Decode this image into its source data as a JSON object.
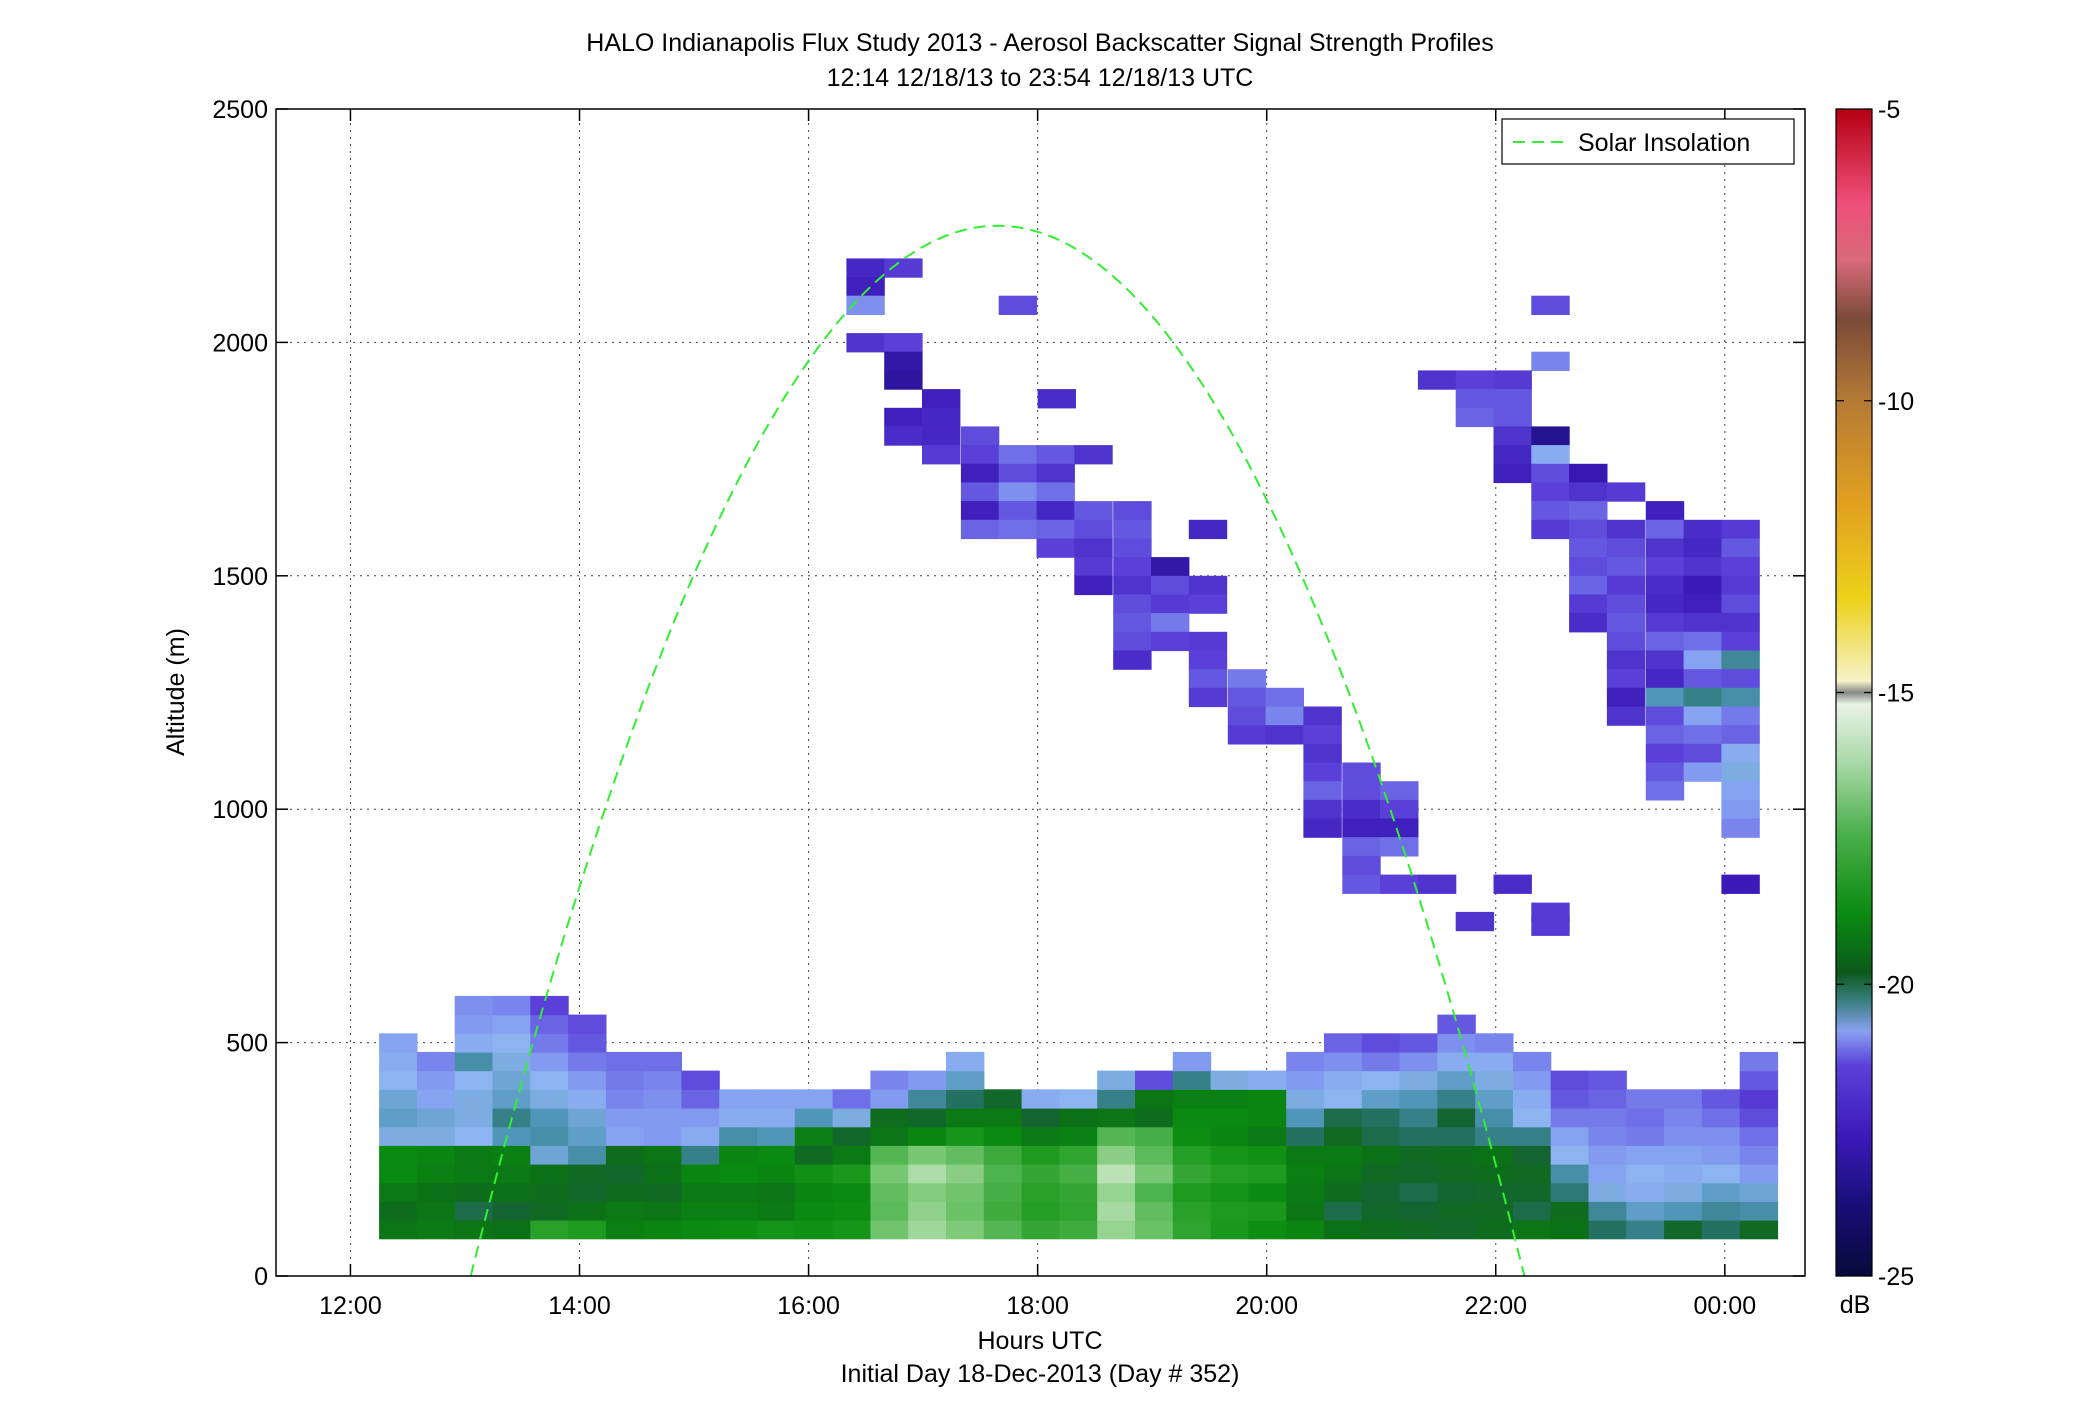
{
  "chart_data": {
    "type": "heatmap",
    "title": "HALO Indianapolis Flux Study 2013 - Aerosol Backscatter Signal Strength Profiles",
    "subtitle": "12:14 12/18/13 to 23:54 12/18/13  UTC",
    "xlabel": "Hours UTC",
    "xlabel2": "Initial Day 18-Dec-2013 (Day # 352)",
    "ylabel": "Altitude (m)",
    "xlim_hours": [
      11.35,
      24.7
    ],
    "ylim": [
      0,
      2500
    ],
    "x_ticks": [
      {
        "value": 12,
        "label": "12:00"
      },
      {
        "value": 14,
        "label": "14:00"
      },
      {
        "value": 16,
        "label": "16:00"
      },
      {
        "value": 18,
        "label": "18:00"
      },
      {
        "value": 20,
        "label": "20:00"
      },
      {
        "value": 22,
        "label": "22:00"
      },
      {
        "value": 24,
        "label": "00:00"
      }
    ],
    "y_ticks": [
      {
        "value": 0,
        "label": "0"
      },
      {
        "value": 500,
        "label": "500"
      },
      {
        "value": 1000,
        "label": "1000"
      },
      {
        "value": 1500,
        "label": "1500"
      },
      {
        "value": 2000,
        "label": "2000"
      },
      {
        "value": 2500,
        "label": "2500"
      }
    ],
    "grid": true,
    "legend": {
      "position": "top-right",
      "entries": [
        {
          "name": "Solar Insolation",
          "color": "#33ee33",
          "style": "dashed"
        }
      ]
    },
    "colorbar": {
      "unit": "dB",
      "range": [
        -25,
        -5
      ],
      "ticks": [
        {
          "value": -5,
          "label": "-5"
        },
        {
          "value": -10,
          "label": "-10"
        },
        {
          "value": -15,
          "label": "-15"
        },
        {
          "value": -20,
          "label": "-20"
        },
        {
          "value": -25,
          "label": "-25"
        }
      ]
    },
    "solar_insolation": {
      "start_hour": 13.05,
      "end_hour": 22.25,
      "peak_hour": 17.65,
      "peak_altitude": 2250
    },
    "cell_width_hours": 0.33,
    "cell_height_m": 40,
    "boundary_layer": {
      "start_hour": 12.25,
      "columns": [
        [
          -19.7,
          -19.9,
          -19.6,
          -19.3,
          -19.3,
          -21.2,
          -21.0,
          -21.1,
          -21.3,
          -21.4,
          -21.5
        ],
        [
          -19.6,
          -19.7,
          -19.8,
          -19.5,
          -19.4,
          -21.2,
          -21.1,
          -21.5,
          -21.6,
          -21.8
        ],
        [
          -19.7,
          -20.3,
          -19.9,
          -19.6,
          -19.6,
          -21.3,
          -21.2,
          -21.2,
          -21.3,
          -20.8,
          -21.4,
          -21.6,
          -21.7
        ],
        [
          -19.8,
          -20.2,
          -19.8,
          -19.6,
          -19.5,
          -20.9,
          -20.6,
          -21.0,
          -21.1,
          -21.2,
          -21.3,
          -21.5,
          -21.8
        ],
        [
          -18.5,
          -20.0,
          -19.9,
          -19.8,
          -21.1,
          -20.8,
          -20.9,
          -21.2,
          -21.3,
          -21.6,
          -21.9,
          -22.1,
          -22.4
        ],
        [
          -18.7,
          -19.8,
          -20.1,
          -20.0,
          -20.8,
          -21.0,
          -21.1,
          -21.4,
          -21.6,
          -21.9,
          -22.2,
          -22.3
        ],
        [
          -19.5,
          -19.6,
          -19.9,
          -20.1,
          -19.9,
          -21.5,
          -21.6,
          -21.8,
          -21.9,
          -22.0
        ],
        [
          -19.4,
          -19.7,
          -20.0,
          -19.8,
          -19.7,
          -21.6,
          -21.6,
          -21.7,
          -21.8,
          -22.0
        ],
        [
          -19.3,
          -19.5,
          -19.6,
          -19.4,
          -20.6,
          -21.4,
          -21.6,
          -22.1,
          -22.3
        ],
        [
          -19.2,
          -19.5,
          -19.6,
          -19.3,
          -19.4,
          -20.8,
          -21.4,
          -21.5
        ],
        [
          -19.0,
          -19.6,
          -19.7,
          -19.4,
          -19.3,
          -20.9,
          -21.4,
          -21.5
        ],
        [
          -19.1,
          -19.3,
          -19.4,
          -19.1,
          -20.0,
          -19.5,
          -20.9,
          -21.5
        ],
        [
          -18.9,
          -19.2,
          -19.3,
          -18.8,
          -19.6,
          -20.1,
          -21.2,
          -22.0
        ],
        [
          -17.4,
          -17.7,
          -17.6,
          -17.3,
          -17.8,
          -19.7,
          -19.9,
          -21.6,
          -21.8
        ],
        [
          -16.6,
          -16.9,
          -17.1,
          -16.4,
          -17.3,
          -19.4,
          -20.1,
          -20.7,
          -21.6
        ],
        [
          -17.2,
          -17.5,
          -17.4,
          -17.0,
          -17.6,
          -18.9,
          -19.6,
          -20.4,
          -21.0,
          -21.4
        ],
        [
          -17.8,
          -18.1,
          -18.0,
          -17.9,
          -18.2,
          -19.3,
          -19.6,
          -20.1
        ],
        [
          -18.3,
          -18.6,
          -18.5,
          -18.3,
          -18.7,
          -19.6,
          -20.2,
          -21.4
        ],
        [
          -18.1,
          -18.4,
          -18.3,
          -18.0,
          -18.4,
          -19.5,
          -19.8,
          -21.3
        ],
        [
          -16.8,
          -16.5,
          -16.8,
          -16.2,
          -17.0,
          -17.8,
          -19.7,
          -20.6,
          -21.2
        ],
        [
          -17.5,
          -17.6,
          -17.9,
          -17.3,
          -17.7,
          -18.0,
          -19.9,
          -19.7,
          -22.3
        ],
        [
          -18.4,
          -18.5,
          -18.7,
          -18.3,
          -18.6,
          -19.2,
          -19.3,
          -19.5,
          -20.6,
          -21.6
        ],
        [
          -18.8,
          -18.7,
          -19.0,
          -18.6,
          -18.9,
          -19.4,
          -19.3,
          -19.5,
          -21.2
        ],
        [
          -19.2,
          -18.8,
          -19.3,
          -18.7,
          -19.1,
          -19.6,
          -19.4,
          -19.4,
          -21.4
        ],
        [
          -19.4,
          -19.7,
          -19.6,
          -19.5,
          -19.6,
          -20.4,
          -20.9,
          -21.2,
          -21.6,
          -21.8
        ],
        [
          -19.8,
          -20.3,
          -19.9,
          -19.7,
          -19.6,
          -20.0,
          -20.3,
          -21.3,
          -21.4,
          -21.7,
          -22.1
        ],
        [
          -19.9,
          -20.1,
          -20.2,
          -20.0,
          -19.8,
          -20.3,
          -20.4,
          -21.0,
          -21.3,
          -21.9,
          -22.3
        ],
        [
          -20.0,
          -20.2,
          -20.3,
          -20.1,
          -20.0,
          -20.4,
          -20.6,
          -20.9,
          -21.2,
          -21.7,
          -22.2
        ],
        [
          -20.1,
          -20.0,
          -20.2,
          -20.0,
          -19.9,
          -20.4,
          -20.2,
          -20.6,
          -21.0,
          -21.4,
          -21.7,
          -22.2
        ],
        [
          -19.9,
          -20.0,
          -20.1,
          -19.9,
          -19.8,
          -20.6,
          -20.8,
          -21.0,
          -21.2,
          -21.4,
          -21.8
        ],
        [
          -19.7,
          -20.3,
          -20.1,
          -20.0,
          -20.2,
          -20.6,
          -21.3,
          -21.4,
          -21.6,
          -21.8
        ],
        [
          -19.8,
          -19.9,
          -20.5,
          -20.8,
          -21.3,
          -21.5,
          -21.9,
          -22.2,
          -22.3
        ],
        [
          -20.4,
          -20.7,
          -21.2,
          -21.5,
          -21.6,
          -21.8,
          -21.9,
          -22.1,
          -22.2
        ],
        [
          -20.6,
          -21.0,
          -21.4,
          -21.3,
          -21.5,
          -21.9,
          -22.0,
          -21.9
        ],
        [
          -20.1,
          -20.9,
          -21.2,
          -21.4,
          -21.5,
          -21.7,
          -21.8,
          -21.9
        ],
        [
          -20.4,
          -20.7,
          -21.0,
          -21.3,
          -21.6,
          -21.7,
          -22.0,
          -22.2
        ],
        [
          -20.0,
          -20.8,
          -21.1,
          -21.6,
          -21.8,
          -22.0,
          -22.3,
          -22.5,
          -22.2,
          -21.9
        ]
      ]
    },
    "aerosol_layer_cells": [
      [
        16.33,
        2140,
        -22.8
      ],
      [
        16.66,
        2140,
        -22.5
      ],
      [
        16.33,
        2100,
        -22.9
      ],
      [
        16.33,
        2060,
        -21.7
      ],
      [
        17.66,
        2060,
        -22.3
      ],
      [
        16.33,
        1980,
        -22.6
      ],
      [
        16.66,
        1980,
        -22.4
      ],
      [
        16.66,
        1940,
        -23.2
      ],
      [
        16.66,
        1900,
        -23.3
      ],
      [
        16.99,
        1860,
        -22.9
      ],
      [
        18.0,
        1860,
        -22.7
      ],
      [
        16.66,
        1820,
        -22.9
      ],
      [
        16.99,
        1820,
        -22.8
      ],
      [
        16.66,
        1780,
        -22.7
      ],
      [
        16.99,
        1780,
        -22.8
      ],
      [
        17.33,
        1780,
        -22.3
      ],
      [
        16.99,
        1740,
        -22.5
      ],
      [
        17.33,
        1740,
        -22.4
      ],
      [
        17.66,
        1740,
        -22.0
      ],
      [
        17.99,
        1740,
        -22.2
      ],
      [
        18.32,
        1740,
        -22.6
      ],
      [
        17.33,
        1700,
        -22.9
      ],
      [
        17.66,
        1700,
        -22.3
      ],
      [
        17.99,
        1700,
        -22.6
      ],
      [
        17.33,
        1660,
        -22.2
      ],
      [
        17.66,
        1660,
        -21.7
      ],
      [
        17.99,
        1660,
        -22.0
      ],
      [
        17.33,
        1620,
        -22.9
      ],
      [
        17.66,
        1620,
        -22.2
      ],
      [
        17.99,
        1620,
        -22.8
      ],
      [
        18.32,
        1620,
        -22.2
      ],
      [
        18.66,
        1620,
        -22.3
      ],
      [
        17.33,
        1580,
        -22.1
      ],
      [
        17.66,
        1580,
        -22.0
      ],
      [
        17.99,
        1580,
        -22.1
      ],
      [
        18.32,
        1580,
        -22.3
      ],
      [
        18.66,
        1580,
        -22.2
      ],
      [
        19.32,
        1580,
        -22.8
      ],
      [
        17.99,
        1540,
        -22.4
      ],
      [
        18.32,
        1540,
        -22.6
      ],
      [
        18.66,
        1540,
        -22.3
      ],
      [
        18.32,
        1500,
        -22.5
      ],
      [
        18.66,
        1500,
        -22.4
      ],
      [
        18.99,
        1500,
        -23.2
      ],
      [
        18.32,
        1460,
        -22.9
      ],
      [
        18.66,
        1460,
        -22.6
      ],
      [
        18.99,
        1460,
        -22.3
      ],
      [
        19.32,
        1460,
        -22.6
      ],
      [
        18.66,
        1420,
        -22.3
      ],
      [
        18.99,
        1420,
        -22.5
      ],
      [
        19.32,
        1420,
        -22.4
      ],
      [
        18.66,
        1380,
        -22.2
      ],
      [
        18.99,
        1380,
        -21.9
      ],
      [
        18.66,
        1340,
        -22.3
      ],
      [
        18.99,
        1340,
        -22.4
      ],
      [
        19.32,
        1340,
        -22.5
      ],
      [
        18.66,
        1300,
        -22.7
      ],
      [
        19.32,
        1300,
        -22.4
      ],
      [
        19.32,
        1260,
        -22.2
      ],
      [
        19.66,
        1260,
        -21.9
      ],
      [
        19.32,
        1220,
        -22.5
      ],
      [
        19.66,
        1220,
        -22.2
      ],
      [
        19.99,
        1220,
        -22.0
      ],
      [
        19.66,
        1180,
        -22.3
      ],
      [
        19.99,
        1180,
        -21.8
      ],
      [
        20.32,
        1180,
        -22.6
      ],
      [
        19.66,
        1140,
        -22.5
      ],
      [
        19.99,
        1140,
        -22.6
      ],
      [
        20.32,
        1140,
        -22.4
      ],
      [
        20.32,
        1100,
        -22.6
      ],
      [
        20.32,
        1060,
        -22.4
      ],
      [
        20.66,
        1060,
        -22.3
      ],
      [
        20.32,
        1020,
        -22.1
      ],
      [
        20.66,
        1020,
        -22.3
      ],
      [
        20.99,
        1020,
        -22.1
      ],
      [
        20.32,
        980,
        -22.6
      ],
      [
        20.66,
        980,
        -22.7
      ],
      [
        20.99,
        980,
        -22.4
      ],
      [
        20.32,
        940,
        -22.8
      ],
      [
        20.66,
        940,
        -22.9
      ],
      [
        20.99,
        940,
        -22.9
      ],
      [
        20.66,
        900,
        -22.1
      ],
      [
        20.99,
        900,
        -22.0
      ],
      [
        20.66,
        860,
        -22.3
      ],
      [
        20.66,
        820,
        -22.2
      ],
      [
        20.99,
        820,
        -22.4
      ],
      [
        21.32,
        820,
        -22.6
      ],
      [
        21.98,
        820,
        -22.7
      ],
      [
        23.97,
        820,
        -23.0
      ],
      [
        21.65,
        740,
        -22.6
      ],
      [
        22.31,
        760,
        -22.5
      ],
      [
        22.31,
        730,
        -22.5
      ],
      [
        22.31,
        2060,
        -22.3
      ],
      [
        22.31,
        1940,
        -21.8
      ],
      [
        21.32,
        1900,
        -22.6
      ],
      [
        21.65,
        1900,
        -22.4
      ],
      [
        21.98,
        1900,
        -22.5
      ],
      [
        21.65,
        1860,
        -22.2
      ],
      [
        21.98,
        1860,
        -22.2
      ],
      [
        21.65,
        1820,
        -22.1
      ],
      [
        21.98,
        1820,
        -22.2
      ],
      [
        21.98,
        1780,
        -22.6
      ],
      [
        22.31,
        1780,
        -23.5
      ],
      [
        21.98,
        1740,
        -22.8
      ],
      [
        22.31,
        1740,
        -21.4
      ],
      [
        21.98,
        1700,
        -22.9
      ],
      [
        22.31,
        1700,
        -22.3
      ],
      [
        22.64,
        1700,
        -23.1
      ],
      [
        22.31,
        1660,
        -22.4
      ],
      [
        22.64,
        1660,
        -22.6
      ],
      [
        22.97,
        1660,
        -22.5
      ],
      [
        22.31,
        1620,
        -22.2
      ],
      [
        22.64,
        1620,
        -22.1
      ],
      [
        23.31,
        1620,
        -22.9
      ],
      [
        22.31,
        1580,
        -22.5
      ],
      [
        22.64,
        1580,
        -22.3
      ],
      [
        22.97,
        1580,
        -22.6
      ],
      [
        23.31,
        1580,
        -22.1
      ],
      [
        23.64,
        1580,
        -22.7
      ],
      [
        23.97,
        1580,
        -22.5
      ],
      [
        22.64,
        1540,
        -22.2
      ],
      [
        22.97,
        1540,
        -22.3
      ],
      [
        23.31,
        1540,
        -22.6
      ],
      [
        23.64,
        1540,
        -22.8
      ],
      [
        23.97,
        1540,
        -22.2
      ],
      [
        22.64,
        1500,
        -22.3
      ],
      [
        22.97,
        1500,
        -22.2
      ],
      [
        23.31,
        1500,
        -22.4
      ],
      [
        23.64,
        1500,
        -22.6
      ],
      [
        23.97,
        1500,
        -22.4
      ],
      [
        22.64,
        1460,
        -22.1
      ],
      [
        22.97,
        1460,
        -22.5
      ],
      [
        23.31,
        1460,
        -22.7
      ],
      [
        23.64,
        1460,
        -23.0
      ],
      [
        23.97,
        1460,
        -22.5
      ],
      [
        22.64,
        1420,
        -22.5
      ],
      [
        22.97,
        1420,
        -22.3
      ],
      [
        23.31,
        1420,
        -22.8
      ],
      [
        23.64,
        1420,
        -22.9
      ],
      [
        23.97,
        1420,
        -22.3
      ],
      [
        22.64,
        1380,
        -22.7
      ],
      [
        22.97,
        1380,
        -22.2
      ],
      [
        23.31,
        1380,
        -22.5
      ],
      [
        23.64,
        1380,
        -22.6
      ],
      [
        23.97,
        1380,
        -22.6
      ],
      [
        22.97,
        1340,
        -22.3
      ],
      [
        23.31,
        1340,
        -22.1
      ],
      [
        23.64,
        1340,
        -22.0
      ],
      [
        23.97,
        1340,
        -22.4
      ],
      [
        22.97,
        1300,
        -22.6
      ],
      [
        23.31,
        1300,
        -22.6
      ],
      [
        23.64,
        1300,
        -21.5
      ],
      [
        23.97,
        1300,
        -20.7
      ],
      [
        22.97,
        1260,
        -22.4
      ],
      [
        23.31,
        1260,
        -22.8
      ],
      [
        23.64,
        1260,
        -22.2
      ],
      [
        23.97,
        1260,
        -22.3
      ],
      [
        22.97,
        1220,
        -22.9
      ],
      [
        23.31,
        1220,
        -20.9
      ],
      [
        23.64,
        1220,
        -20.6
      ],
      [
        23.97,
        1220,
        -20.8
      ],
      [
        22.97,
        1180,
        -22.6
      ],
      [
        23.31,
        1180,
        -22.3
      ],
      [
        23.64,
        1180,
        -21.5
      ],
      [
        23.97,
        1180,
        -21.9
      ],
      [
        23.31,
        1140,
        -22.1
      ],
      [
        23.64,
        1140,
        -22.0
      ],
      [
        23.97,
        1140,
        -22.1
      ],
      [
        23.31,
        1100,
        -22.4
      ],
      [
        23.64,
        1100,
        -22.3
      ],
      [
        23.97,
        1100,
        -21.4
      ],
      [
        23.31,
        1060,
        -22.2
      ],
      [
        23.64,
        1060,
        -21.6
      ],
      [
        23.97,
        1060,
        -21.2
      ],
      [
        23.31,
        1020,
        -22.0
      ],
      [
        23.97,
        1020,
        -21.5
      ],
      [
        23.97,
        980,
        -21.6
      ],
      [
        23.97,
        940,
        -21.8
      ]
    ]
  }
}
